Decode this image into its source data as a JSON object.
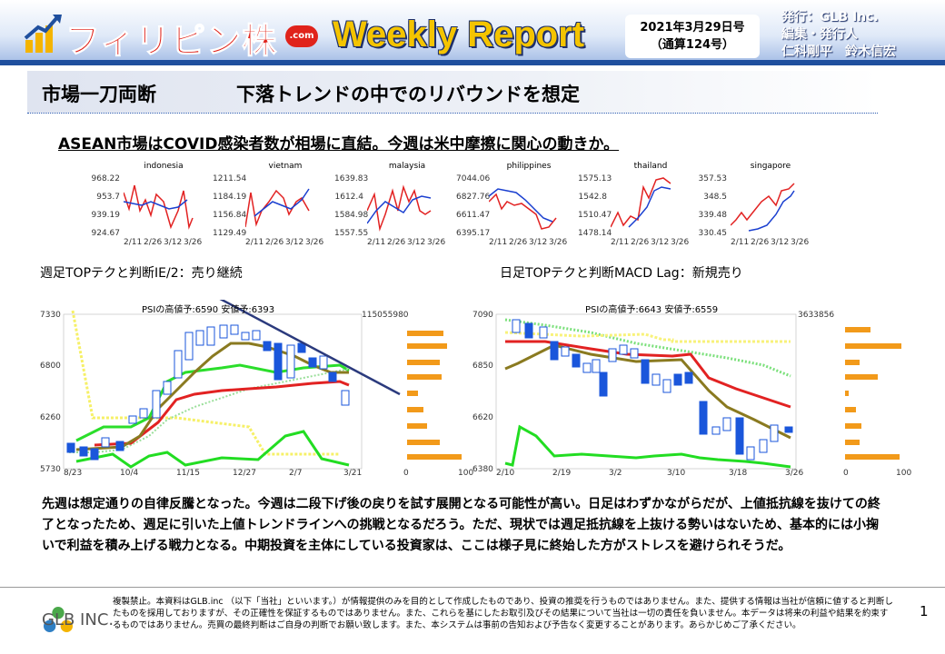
{
  "header": {
    "logo": "フィリピン株",
    "logo_badge": ".com",
    "report_name": "Weekly Report",
    "date": "2021年3月29日号",
    "issue": "（通算124号）",
    "publisher_lines": [
      "発行：GLB Inc.",
      "編集・発行人",
      "仁科剛平　鈴木信宏"
    ]
  },
  "title": {
    "section": "市場一刀両断",
    "headline": "下落トレンドの中でのリバウンドを想定",
    "subheadline": "ASEAN市場はCOVID感染者数が相場に直結。今週は米中摩擦に関心の動きか。"
  },
  "mini_charts": [
    {
      "name": "indonesia",
      "yticks": [
        "968.22",
        "953.7",
        "939.19",
        "924.67"
      ],
      "xticks": [
        "2/11",
        "2/26",
        "3/12",
        "3/26"
      ]
    },
    {
      "name": "vietnam",
      "yticks": [
        "1211.54",
        "1184.19",
        "1156.84",
        "1129.49"
      ],
      "xticks": [
        "2/11",
        "2/26",
        "3/12",
        "3/26"
      ]
    },
    {
      "name": "malaysia",
      "yticks": [
        "1639.83",
        "1612.4",
        "1584.98",
        "1557.55"
      ],
      "xticks": [
        "2/11",
        "2/26",
        "3/12",
        "3/26"
      ]
    },
    {
      "name": "philippines",
      "yticks": [
        "7044.06",
        "6827.76",
        "6611.47",
        "6395.17"
      ],
      "xticks": [
        "2/11",
        "2/26",
        "3/12",
        "3/26"
      ]
    },
    {
      "name": "thailand",
      "yticks": [
        "1575.13",
        "1542.8",
        "1510.47",
        "1478.14"
      ],
      "xticks": [
        "2/11",
        "2/26",
        "3/12",
        "3/26"
      ]
    },
    {
      "name": "singapore",
      "yticks": [
        "357.53",
        "348.5",
        "339.48",
        "330.45"
      ],
      "xticks": [
        "2/11",
        "2/26",
        "3/12",
        "3/26"
      ]
    }
  ],
  "weekly_chart": {
    "title": "週足TOPテクと判断IE/2：売り継続",
    "psi": "PSIの高値予:6590 安値予:6393",
    "yticks": [
      "7330",
      "6800",
      "6260",
      "5730"
    ],
    "xticks": [
      "8/23",
      "10/4",
      "11/15",
      "12/27",
      "2/7",
      "3/21"
    ],
    "volume_max": "115055980",
    "hist_axis": [
      "0",
      "100"
    ]
  },
  "daily_chart": {
    "title": "日足TOPテクと判断MACD Lag：新規売り",
    "psi": "PSIの高値予:6643 安値予:6559",
    "yticks": [
      "7090",
      "6850",
      "6620",
      "6380"
    ],
    "xticks": [
      "2/10",
      "2/19",
      "3/2",
      "3/10",
      "3/18",
      "3/26"
    ],
    "volume_max": "3633856",
    "hist_axis": [
      "0",
      "100"
    ]
  },
  "body": "先週は想定通りの自律反騰となった。今週は二段下げ後の戻りを試す展開となる可能性が高い。日足はわずかながらだが、上値抵抗線を抜けての終了となったため、週足に引いた上値トレンドラインへの挑戦となるだろう。ただ、現状では週足抵抗線を上抜ける勢いはないため、基本的には小掬いで利益を積み上げる戦力となる。中期投資を主体にしている投資家は、ここは様子見に終始した方がストレスを避けられそうだ。",
  "footer": {
    "logo": "GLB INC.",
    "disclaimer": "複製禁止。本資料はGLB.inc （以下「当社」といいます。）が情報提供のみを目的として作成したものであり、投資の推奨を行うものではありません。また、提供する情報は当社が信頼に値すると判断したものを採用しておりますが、その正確性を保証するものではありません。また、これらを基にしたお取引及びその結果について当社は一切の責任を負いません。本データは将来の利益や結果を約束するものではありません。売買の最終判断はご自身の判断でお願い致します。また、本システムは事前の告知および予告なく変更することがあります。あらかじめご了承ください。",
    "page": "1"
  },
  "colors": {
    "accent_red": "#e0231b",
    "accent_blue": "#1f4f9e",
    "candle_blue": "#1a56db",
    "green": "#22dd22",
    "orange": "#f29a1a"
  }
}
